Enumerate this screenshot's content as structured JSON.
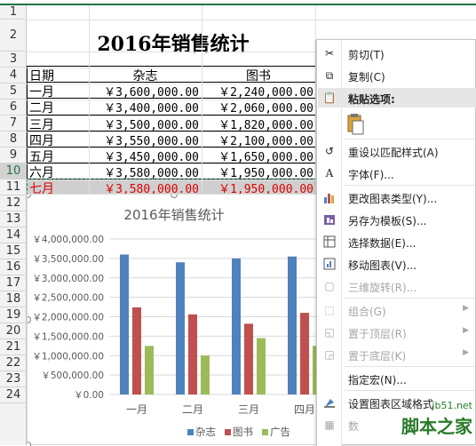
{
  "sheet": {
    "row_numbers": [
      "1",
      "2",
      "3",
      "4",
      "5",
      "6",
      "7",
      "8",
      "9",
      "10",
      "11",
      "12",
      "13",
      "14",
      "15",
      "16",
      "17",
      "18",
      "19",
      "20",
      "21",
      "22",
      "23",
      "24"
    ],
    "title": "2016年销售统计",
    "headers": [
      "日期",
      "杂志",
      "图书"
    ],
    "rows": [
      {
        "date": "一月",
        "magazine": "￥3,600,000.00",
        "book": "￥2,240,000.00"
      },
      {
        "date": "二月",
        "magazine": "￥3,400,000.00",
        "book": "￥2,060,000.00"
      },
      {
        "date": "三月",
        "magazine": "￥3,500,000.00",
        "book": "￥1,820,000.00"
      },
      {
        "date": "四月",
        "magazine": "￥3,550,000.00",
        "book": "￥2,100,000.00"
      },
      {
        "date": "五月",
        "magazine": "￥3,450,000.00",
        "book": "￥1,650,000.00"
      },
      {
        "date": "六月",
        "magazine": "￥3,580,000.00",
        "book": "￥1,950,000.00"
      },
      {
        "date": "七月",
        "magazine": "￥3,580,000.00",
        "book": "￥1,950,000.00"
      }
    ],
    "active_row": "10"
  },
  "chart_data": {
    "type": "bar",
    "title": "2016年销售统计",
    "categories": [
      "一月",
      "二月",
      "三月",
      "四月"
    ],
    "series": [
      {
        "name": "杂志",
        "color": "#4f81bd",
        "values": [
          3600000,
          3400000,
          3500000,
          3550000
        ]
      },
      {
        "name": "图书",
        "color": "#c0504d",
        "values": [
          2240000,
          2060000,
          1820000,
          2100000
        ]
      },
      {
        "name": "广告",
        "color": "#9bbb59",
        "values": [
          1250000,
          1000000,
          1450000,
          1250000
        ]
      }
    ],
    "ylim": [
      0,
      4000000
    ],
    "y_ticks": [
      {
        "v": 0,
        "label": "￥0.00"
      },
      {
        "v": 500000,
        "label": "￥500,000.00"
      },
      {
        "v": 1000000,
        "label": "￥1,000,000.00"
      },
      {
        "v": 1500000,
        "label": "￥1,500,000.00"
      },
      {
        "v": 2000000,
        "label": "￥2,000,000.00"
      },
      {
        "v": 2500000,
        "label": "￥2,500,000.00"
      },
      {
        "v": 3000000,
        "label": "￥3,000,000.00"
      },
      {
        "v": 3500000,
        "label": "￥3,500,000.00"
      },
      {
        "v": 4000000,
        "label": "￥4,000,000.00"
      }
    ],
    "grid": true,
    "legend": "bottom"
  },
  "context_menu": {
    "cut": {
      "label": "剪切(T)",
      "icon": "scissors-icon"
    },
    "copy": {
      "label": "复制(C)",
      "icon": "copy-icon"
    },
    "paste_options": {
      "label": "粘贴选项:",
      "icon": "clipboard-icon"
    },
    "reset_style": {
      "label": "重设以匹配样式(A)",
      "icon": "reset-style-icon"
    },
    "font": {
      "label": "字体(F)...",
      "icon": "font-icon"
    },
    "change_type": {
      "label": "更改图表类型(Y)...",
      "icon": "chart-type-icon"
    },
    "save_template": {
      "label": "另存为模板(S)...",
      "icon": "save-template-icon"
    },
    "select_data": {
      "label": "选择数据(E)...",
      "icon": "select-data-icon"
    },
    "move_chart": {
      "label": "移动图表(V)...",
      "icon": "move-chart-icon"
    },
    "rotate_3d": {
      "label": "三维旋转(R)...",
      "icon": "rotate-3d-icon"
    },
    "group": {
      "label": "组合(G)",
      "icon": "group-icon"
    },
    "bring_front": {
      "label": "置于顶层(R)",
      "icon": "bring-front-icon"
    },
    "send_back": {
      "label": "置于底层(K)",
      "icon": "send-back-icon"
    },
    "assign_macro": {
      "label": "指定宏(N)...",
      "icon": "macro-icon"
    },
    "format_area": {
      "label": "设置图表区域格式",
      "icon": "format-area-icon"
    },
    "data_table": {
      "label": "数",
      "icon": "data-table-icon"
    }
  },
  "watermark": {
    "url": "jb51.net",
    "text": "脚本之家"
  }
}
